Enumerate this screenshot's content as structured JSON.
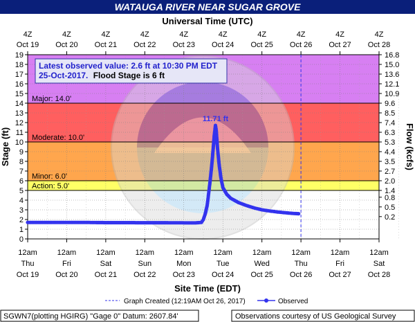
{
  "chart_data": {
    "type": "line",
    "title": "WATAUGA RIVER NEAR SUGAR GROVE",
    "top_axis_title": "Universal Time (UTC)",
    "xlabel": "Site Time (EDT)",
    "ylabel_left": "Stage (ft)",
    "ylabel_right": "Flow (kcfs)",
    "xlim_days": [
      19,
      28
    ],
    "ylim": [
      0,
      19
    ],
    "grid": true,
    "legend_position": "bottom",
    "utc_ticks": [
      {
        "day": 19,
        "hour": "4Z",
        "date": "Oct 19"
      },
      {
        "day": 20,
        "hour": "4Z",
        "date": "Oct 20"
      },
      {
        "day": 21,
        "hour": "4Z",
        "date": "Oct 21"
      },
      {
        "day": 22,
        "hour": "4Z",
        "date": "Oct 22"
      },
      {
        "day": 23,
        "hour": "4Z",
        "date": "Oct 23"
      },
      {
        "day": 24,
        "hour": "4Z",
        "date": "Oct 24"
      },
      {
        "day": 25,
        "hour": "4Z",
        "date": "Oct 25"
      },
      {
        "day": 26,
        "hour": "4Z",
        "date": "Oct 26"
      },
      {
        "day": 27,
        "hour": "4Z",
        "date": "Oct 27"
      },
      {
        "day": 28,
        "hour": "4Z",
        "date": "Oct 28"
      }
    ],
    "local_ticks": [
      {
        "day": 19,
        "time": "12am",
        "dow": "Thu",
        "date": "Oct 19"
      },
      {
        "day": 20,
        "time": "12am",
        "dow": "Fri",
        "date": "Oct 20"
      },
      {
        "day": 21,
        "time": "12am",
        "dow": "Sat",
        "date": "Oct 21"
      },
      {
        "day": 22,
        "time": "12am",
        "dow": "Sun",
        "date": "Oct 22"
      },
      {
        "day": 23,
        "time": "12am",
        "dow": "Mon",
        "date": "Oct 23"
      },
      {
        "day": 24,
        "time": "12am",
        "dow": "Tue",
        "date": "Oct 24"
      },
      {
        "day": 25,
        "time": "12am",
        "dow": "Wed",
        "date": "Oct 25"
      },
      {
        "day": 26,
        "time": "12am",
        "dow": "Thu",
        "date": "Oct 26"
      },
      {
        "day": 27,
        "time": "12am",
        "dow": "Fri",
        "date": "Oct 27"
      },
      {
        "day": 28,
        "time": "12am",
        "dow": "Sat",
        "date": "Oct 28"
      }
    ],
    "stage_ticks": [
      0,
      1,
      2,
      3,
      4,
      5,
      6,
      7,
      8,
      9,
      10,
      11,
      12,
      13,
      14,
      15,
      16,
      17,
      18,
      19
    ],
    "flow_ticks": [
      {
        "stage": 2.3,
        "label": "0.2"
      },
      {
        "stage": 3.3,
        "label": "0.5"
      },
      {
        "stage": 4.3,
        "label": "0.8"
      },
      {
        "stage": 5.0,
        "label": "1.4"
      },
      {
        "stage": 6.0,
        "label": "2.0"
      },
      {
        "stage": 7.0,
        "label": "2.7"
      },
      {
        "stage": 8.0,
        "label": "3.5"
      },
      {
        "stage": 9.0,
        "label": "4.4"
      },
      {
        "stage": 10.0,
        "label": "5.3"
      },
      {
        "stage": 11.0,
        "label": "6.3"
      },
      {
        "stage": 12.0,
        "label": "7.4"
      },
      {
        "stage": 13.0,
        "label": "8.5"
      },
      {
        "stage": 14.0,
        "label": "9.6"
      },
      {
        "stage": 15.0,
        "label": "10.9"
      },
      {
        "stage": 16.0,
        "label": "12.1"
      },
      {
        "stage": 17.0,
        "label": "13.6"
      },
      {
        "stage": 18.0,
        "label": "15.0"
      },
      {
        "stage": 19.0,
        "label": "16.8"
      }
    ],
    "flood_categories": [
      {
        "label": "Major: 14.0'",
        "from": 14,
        "to": 19,
        "color": "#d77ff2"
      },
      {
        "label": "Moderate: 10.0'",
        "from": 10,
        "to": 14,
        "color": "#ff5f5f"
      },
      {
        "label": "Minor: 6.0'",
        "from": 6,
        "to": 10,
        "color": "#ffa64d"
      },
      {
        "label": "Action: 5.0'",
        "from": 5,
        "to": 6,
        "color": "#ffff66"
      }
    ],
    "latest_observed": {
      "line1": "Latest observed value: 2.6 ft at 10:30 PM EDT",
      "line2_date": "25-Oct-2017.",
      "line2_flood": "Flood Stage is 6 ft"
    },
    "peak_label": "11.71 ft",
    "peak": {
      "x": 23.81,
      "y": 11.71
    },
    "graph_created_day": 26.0,
    "series": [
      {
        "name": "Observed",
        "color": "#3333ee",
        "points": [
          [
            19.0,
            1.7
          ],
          [
            19.5,
            1.7
          ],
          [
            20.0,
            1.7
          ],
          [
            20.5,
            1.7
          ],
          [
            21.0,
            1.68
          ],
          [
            21.5,
            1.68
          ],
          [
            22.0,
            1.67
          ],
          [
            22.5,
            1.67
          ],
          [
            23.0,
            1.66
          ],
          [
            23.3,
            1.66
          ],
          [
            23.45,
            1.7
          ],
          [
            23.5,
            2.0
          ],
          [
            23.55,
            2.6
          ],
          [
            23.6,
            3.5
          ],
          [
            23.63,
            4.5
          ],
          [
            23.66,
            5.5
          ],
          [
            23.69,
            6.6
          ],
          [
            23.72,
            7.8
          ],
          [
            23.75,
            9.2
          ],
          [
            23.78,
            10.7
          ],
          [
            23.81,
            11.71
          ],
          [
            23.83,
            11.2
          ],
          [
            23.86,
            9.5
          ],
          [
            23.9,
            7.8
          ],
          [
            23.95,
            6.3
          ],
          [
            24.0,
            5.3
          ],
          [
            24.1,
            4.6
          ],
          [
            24.2,
            4.2
          ],
          [
            24.4,
            3.75
          ],
          [
            24.6,
            3.45
          ],
          [
            24.8,
            3.2
          ],
          [
            25.0,
            3.0
          ],
          [
            25.2,
            2.88
          ],
          [
            25.4,
            2.78
          ],
          [
            25.6,
            2.7
          ],
          [
            25.8,
            2.63
          ],
          [
            25.94,
            2.6
          ]
        ]
      }
    ],
    "legend": {
      "graph_created": "Graph Created (12:19AM Oct 26, 2017)",
      "observed": "Observed"
    },
    "footer_left": "SGWN7(plotting HGIRG) \"Gage 0\" Datum: 2607.84'",
    "footer_right": "Observations courtesy of US Geological Survey"
  }
}
